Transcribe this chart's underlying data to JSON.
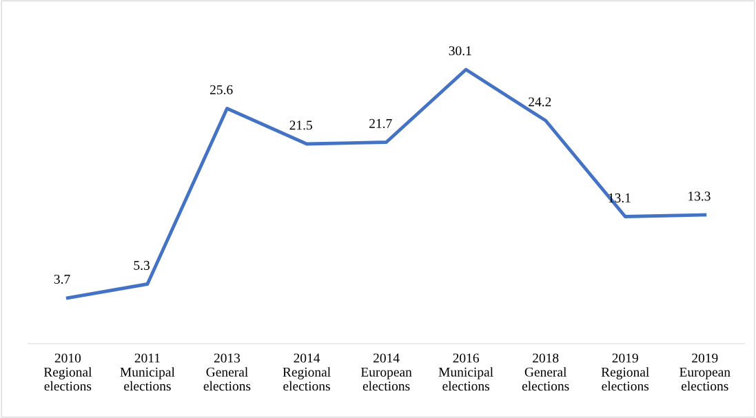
{
  "chart_data": {
    "type": "line",
    "categories": [
      "2010\nRegional\nelections",
      "2011\nMunicipal\nelections",
      "2013\nGeneral\nelections",
      "2014\nRegional\nelections",
      "2014\nEuropean\nelections",
      "2016\nMunicipal\nelections",
      "2018\nGeneral\nelections",
      "2019\nRegional\nelections",
      "2019\nEuropean\nelections"
    ],
    "series": [
      {
        "color": "#4472c4",
        "values": [
          3.7,
          5.3,
          25.6,
          21.5,
          21.7,
          30.1,
          24.2,
          13.1,
          13.3
        ]
      }
    ],
    "data_labels": true,
    "grid": false,
    "legend": false,
    "tick_labels": "x",
    "marker": "none",
    "line_style": "solid"
  }
}
